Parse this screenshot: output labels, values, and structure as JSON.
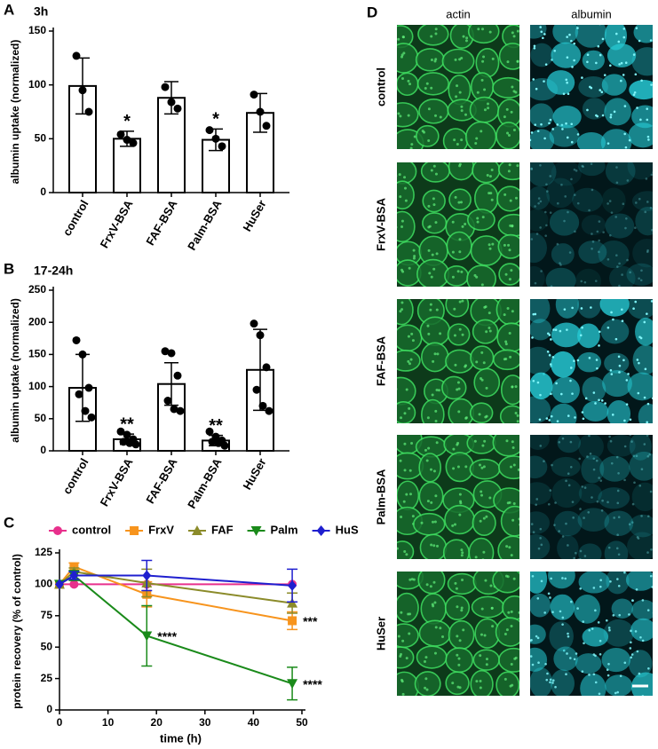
{
  "chart_data": [
    {
      "type": "bar",
      "panel": "A",
      "title": "3h",
      "y_label": "albumin uptake (normalized)",
      "categories": [
        "control",
        "FrxV-BSA",
        "FAF-BSA",
        "Palm-BSA",
        "HuSer"
      ],
      "values": [
        99,
        50,
        88,
        49,
        74
      ],
      "errors": [
        26,
        7,
        15,
        10,
        18
      ],
      "points": [
        [
          127,
          95,
          75
        ],
        [
          54,
          49,
          46
        ],
        [
          98,
          84,
          78
        ],
        [
          58,
          50,
          43
        ],
        [
          91,
          75,
          62
        ]
      ],
      "significance": [
        null,
        "*",
        null,
        "*",
        null
      ],
      "color": "#ffffff",
      "ylim": [
        0,
        150
      ],
      "yticks": [
        0,
        50,
        100,
        150
      ]
    },
    {
      "type": "bar",
      "panel": "B",
      "title": "17-24h",
      "y_label": "albumin uptake (normalized)",
      "categories": [
        "control",
        "FrxV-BSA",
        "FAF-BSA",
        "Palm-BSA",
        "HuSer"
      ],
      "values": [
        98,
        18,
        104,
        16,
        126
      ],
      "errors": [
        52,
        8,
        33,
        8,
        63
      ],
      "points": [
        [
          172,
          150,
          98,
          88,
          62,
          52
        ],
        [
          30,
          25,
          18,
          14,
          12,
          10
        ],
        [
          155,
          152,
          117,
          78,
          65,
          62
        ],
        [
          30,
          22,
          16,
          14,
          12,
          8
        ],
        [
          198,
          180,
          130,
          95,
          70,
          62
        ]
      ],
      "significance": [
        null,
        "**",
        null,
        "**",
        null
      ],
      "color": "#ffffff",
      "ylim": [
        0,
        250
      ],
      "yticks": [
        0,
        50,
        100,
        150,
        200,
        250
      ]
    },
    {
      "type": "line",
      "panel": "C",
      "x_label": "time (h)",
      "y_label": "protein recovery (% of control)",
      "x": [
        0,
        3,
        18,
        48
      ],
      "series": [
        {
          "name": "control",
          "color": "#e8308c",
          "marker": "circle",
          "values": [
            100,
            100,
            100,
            100
          ]
        },
        {
          "name": "FrxV",
          "color": "#f7941d",
          "marker": "square",
          "values": [
            100,
            114,
            92,
            71
          ],
          "errors": [
            null,
            3,
            10,
            7
          ],
          "significance": [
            null,
            null,
            null,
            "***"
          ]
        },
        {
          "name": "FAF",
          "color": "#8b8b2a",
          "marker": "triangle-up",
          "values": [
            100,
            110,
            101,
            85
          ],
          "errors": [
            null,
            3,
            11,
            8
          ]
        },
        {
          "name": "Palm",
          "color": "#1a8a1a",
          "marker": "triangle-down",
          "values": [
            100,
            107,
            59,
            21
          ],
          "errors": [
            null,
            4,
            24,
            13
          ],
          "significance": [
            null,
            null,
            "****",
            "****"
          ]
        },
        {
          "name": "HuS",
          "color": "#1f1fcf",
          "marker": "diamond",
          "values": [
            100,
            107,
            107,
            99
          ],
          "errors": [
            null,
            3,
            12,
            13
          ]
        }
      ],
      "xlim": [
        0,
        50
      ],
      "xticks": [
        0,
        10,
        20,
        30,
        40,
        50
      ],
      "ylim": [
        0,
        125
      ],
      "yticks": [
        0,
        25,
        50,
        75,
        100,
        125
      ],
      "legend": "top"
    }
  ],
  "image_panel": {
    "panel": "D",
    "columns": [
      "actin",
      "albumin"
    ],
    "rows": [
      "control",
      "FrxV-BSA",
      "FAF-BSA",
      "Palm-BSA",
      "HuSer"
    ]
  }
}
